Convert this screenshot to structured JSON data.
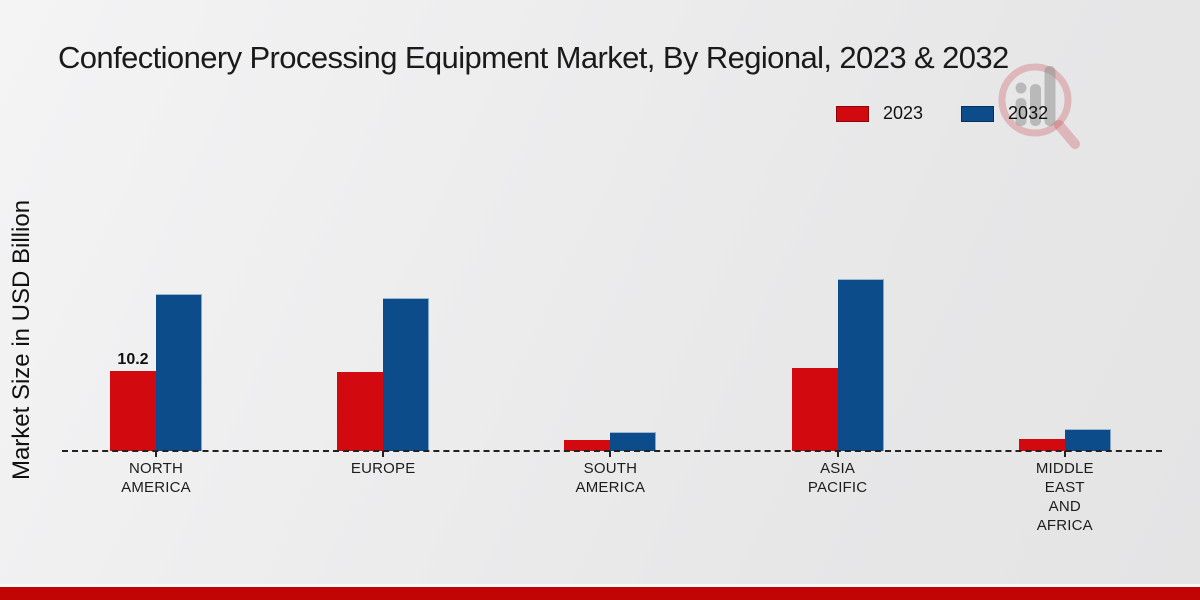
{
  "header": {
    "title": "Confectionery Processing Equipment Market, By Regional, 2023 & 2032"
  },
  "colors": {
    "series_2023": "#d20a10",
    "series_2032": "#0d4c8b",
    "footer_strip": "#c10404",
    "baseline": "#222222",
    "background": "#ebebec"
  },
  "watermark": {
    "description": "bar-chart-magnifier-logo"
  },
  "chart_data": {
    "type": "bar",
    "title": "Confectionery Processing Equipment Market, By Regional, 2023 & 2032",
    "xlabel": "",
    "ylabel": "Market Size in USD Billion",
    "unit": "USD Billion",
    "categories": [
      "North America",
      "Europe",
      "South America",
      "Asia Pacific",
      "Middle East and Africa"
    ],
    "category_label_lines": [
      [
        "NORTH",
        "AMERICA"
      ],
      [
        "EUROPE"
      ],
      [
        "SOUTH",
        "AMERICA"
      ],
      [
        "ASIA",
        "PACIFIC"
      ],
      [
        "MIDDLE",
        "EAST",
        "AND",
        "AFRICA"
      ]
    ],
    "series": [
      {
        "name": "2023",
        "color": "#d20a10",
        "values": [
          10.2,
          10.1,
          1.4,
          10.5,
          1.5
        ]
      },
      {
        "name": "2032",
        "color": "#0d4c8b",
        "values": [
          19.9,
          19.5,
          2.4,
          21.9,
          2.8
        ]
      }
    ],
    "bar_labels": [
      {
        "category_index": 0,
        "series_index": 0,
        "text": "10.2"
      }
    ],
    "ylim": [
      0,
      25
    ],
    "grid": false,
    "y_axis_ticks_visible": false,
    "baseline_style": "dashed",
    "legend_position": "top-right"
  }
}
